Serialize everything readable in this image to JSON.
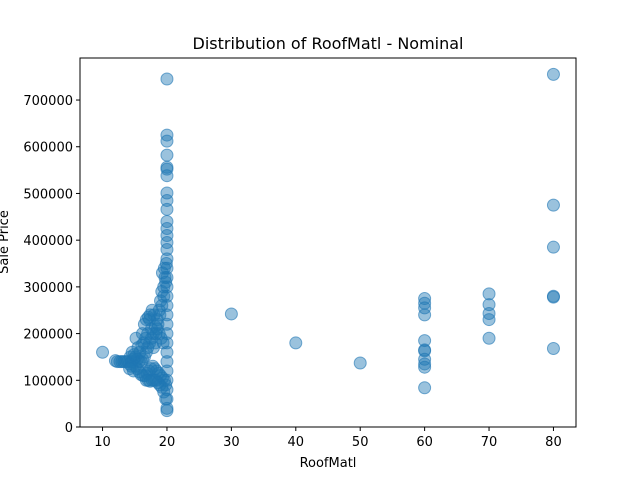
{
  "chart_data": {
    "type": "scatter",
    "title": "Distribution of RoofMatl - Nominal",
    "xlabel": "RoofMatl",
    "ylabel": "Sale Price",
    "xlim": [
      6.5,
      83.5
    ],
    "ylim": [
      0,
      790000
    ],
    "xticks": [
      10,
      20,
      30,
      40,
      50,
      60,
      70,
      80
    ],
    "yticks": [
      0,
      100000,
      200000,
      300000,
      400000,
      500000,
      600000,
      700000
    ],
    "grid": false,
    "color": "#1f77b4",
    "series": [
      {
        "points": [
          [
            10,
            160000
          ],
          [
            30,
            242000
          ],
          [
            40,
            180000
          ],
          [
            50,
            137000
          ],
          [
            60,
            275000
          ],
          [
            60,
            265000
          ],
          [
            60,
            255000
          ],
          [
            60,
            240000
          ],
          [
            60,
            185000
          ],
          [
            60,
            165000
          ],
          [
            60,
            163000
          ],
          [
            60,
            145000
          ],
          [
            60,
            135000
          ],
          [
            60,
            128000
          ],
          [
            60,
            84000
          ],
          [
            70,
            285000
          ],
          [
            70,
            262000
          ],
          [
            70,
            243000
          ],
          [
            70,
            230000
          ],
          [
            70,
            190000
          ],
          [
            80,
            755000
          ],
          [
            80,
            475000
          ],
          [
            80,
            385000
          ],
          [
            80,
            280000
          ],
          [
            80,
            278000
          ],
          [
            80,
            168000
          ],
          [
            20,
            745000
          ],
          [
            20,
            625000
          ],
          [
            20,
            612000
          ],
          [
            20,
            582000
          ],
          [
            20,
            556000
          ],
          [
            20,
            552000
          ],
          [
            20,
            538000
          ],
          [
            20,
            501000
          ],
          [
            20,
            485000
          ],
          [
            20,
            466000
          ],
          [
            20,
            440000
          ],
          [
            20,
            425000
          ],
          [
            20,
            410000
          ],
          [
            20,
            395000
          ],
          [
            20,
            380000
          ],
          [
            20,
            360000
          ],
          [
            20,
            340000
          ],
          [
            20,
            320000
          ],
          [
            20,
            300000
          ],
          [
            20,
            280000
          ],
          [
            20,
            260000
          ],
          [
            20,
            240000
          ],
          [
            20,
            220000
          ],
          [
            20,
            200000
          ],
          [
            20,
            180000
          ],
          [
            20,
            160000
          ],
          [
            20,
            140000
          ],
          [
            20,
            120000
          ],
          [
            20,
            100000
          ],
          [
            20,
            80000
          ],
          [
            20,
            60000
          ],
          [
            20,
            40000
          ],
          [
            20,
            35000
          ],
          [
            19.7,
            320000
          ],
          [
            19.5,
            300000
          ],
          [
            19.2,
            290000
          ],
          [
            19,
            270000
          ],
          [
            18.8,
            250000
          ],
          [
            18.5,
            230000
          ],
          [
            18.2,
            215000
          ],
          [
            17.9,
            200000
          ],
          [
            17.6,
            190000
          ],
          [
            17.3,
            180000
          ],
          [
            17,
            170000
          ],
          [
            16.8,
            160000
          ],
          [
            16.5,
            150000
          ],
          [
            16.2,
            145000
          ],
          [
            16,
            140000
          ],
          [
            15.7,
            140000
          ],
          [
            15.4,
            145000
          ],
          [
            15.1,
            150000
          ],
          [
            14.8,
            145000
          ],
          [
            14.5,
            140000
          ],
          [
            14.2,
            135000
          ],
          [
            13.9,
            140000
          ],
          [
            13.6,
            140000
          ],
          [
            13.3,
            140000
          ],
          [
            13,
            140000
          ],
          [
            12.7,
            140000
          ],
          [
            12.3,
            140000
          ],
          [
            12,
            142000
          ],
          [
            19.6,
            100000
          ],
          [
            19.3,
            105000
          ],
          [
            19,
            110000
          ],
          [
            18.7,
            115000
          ],
          [
            18.4,
            120000
          ],
          [
            18.1,
            125000
          ],
          [
            17.8,
            130000
          ],
          [
            17.5,
            125000
          ],
          [
            17.2,
            120000
          ],
          [
            16.9,
            115000
          ],
          [
            16.6,
            110000
          ],
          [
            16.3,
            110000
          ],
          [
            16,
            112000
          ],
          [
            15.7,
            118000
          ],
          [
            15.4,
            125000
          ],
          [
            15.1,
            130000
          ],
          [
            14.8,
            120000
          ],
          [
            14.5,
            130000
          ],
          [
            14.2,
            125000
          ],
          [
            19.4,
            180000
          ],
          [
            19.1,
            190000
          ],
          [
            18.8,
            200000
          ],
          [
            18.5,
            210000
          ],
          [
            18.2,
            180000
          ],
          [
            17.9,
            170000
          ],
          [
            17.6,
            210000
          ],
          [
            17.3,
            230000
          ],
          [
            17,
            200000
          ],
          [
            16.7,
            190000
          ],
          [
            16.4,
            180000
          ],
          [
            16.1,
            175000
          ],
          [
            15.8,
            160000
          ],
          [
            15.5,
            170000
          ],
          [
            15.2,
            190000
          ],
          [
            14.9,
            155000
          ],
          [
            14.6,
            160000
          ],
          [
            14.3,
            150000
          ],
          [
            19.8,
            60000
          ],
          [
            19.5,
            75000
          ],
          [
            19.8,
            90000
          ],
          [
            19.2,
            85000
          ],
          [
            18.9,
            90000
          ],
          [
            18.6,
            95000
          ],
          [
            18.3,
            100000
          ],
          [
            18,
            100000
          ],
          [
            17.7,
            100000
          ],
          [
            17.4,
            98000
          ],
          [
            17.1,
            100000
          ],
          [
            16.8,
            100000
          ],
          [
            19.9,
            350000
          ],
          [
            19.6,
            340000
          ],
          [
            19.3,
            330000
          ],
          [
            19.8,
            310000
          ],
          [
            19.5,
            280000
          ],
          [
            19.2,
            260000
          ],
          [
            18.9,
            240000
          ],
          [
            18.6,
            220000
          ],
          [
            18.3,
            200000
          ],
          [
            18,
            240000
          ],
          [
            17.7,
            250000
          ],
          [
            17.4,
            240000
          ],
          [
            17.1,
            235000
          ],
          [
            16.8,
            230000
          ],
          [
            16.5,
            220000
          ],
          [
            16.2,
            200000
          ]
        ]
      }
    ]
  }
}
